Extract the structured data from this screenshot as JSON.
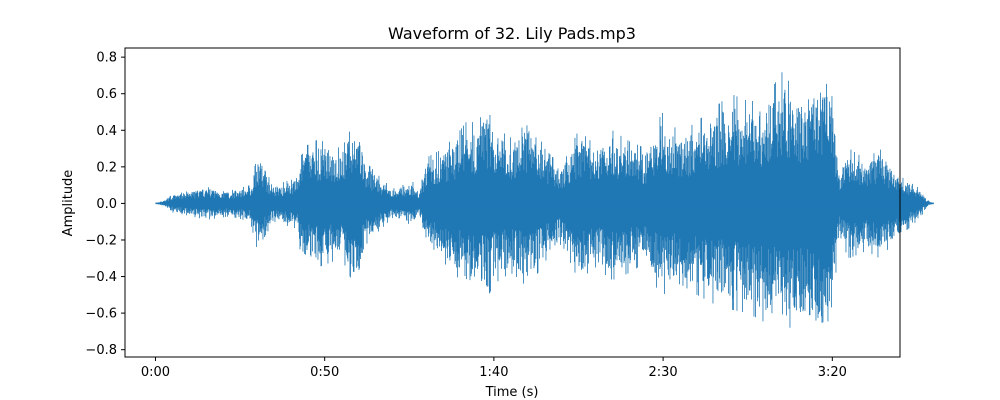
{
  "chart_data": {
    "type": "line",
    "title": "Waveform of 32. Lily Pads.mp3",
    "xlabel": "Time (s)",
    "ylabel": "Amplitude",
    "xlim": [
      -9,
      220
    ],
    "ylim": [
      -0.84,
      0.85
    ],
    "xticks": [
      0,
      50,
      100,
      150,
      200
    ],
    "xtick_labels": [
      "0:00",
      "0:50",
      "1:40",
      "2:30",
      "3:20"
    ],
    "yticks": [
      -0.8,
      -0.6,
      -0.4,
      -0.2,
      0.0,
      0.2,
      0.4,
      0.6,
      0.8
    ],
    "ytick_labels": [
      "−0.8",
      "−0.6",
      "−0.4",
      "−0.2",
      "0.0",
      "0.2",
      "0.4",
      "0.6",
      "0.8"
    ],
    "color": "#1f77b4",
    "grid": false,
    "series": [
      {
        "envelope_time_s": [
          0,
          3,
          5,
          8,
          15,
          22,
          28,
          30,
          35,
          42,
          43,
          48,
          55,
          58,
          60,
          62,
          65,
          70,
          76,
          78,
          80,
          85,
          90,
          92,
          95,
          98,
          100,
          105,
          108,
          110,
          115,
          120,
          125,
          130,
          135,
          140,
          145,
          148,
          150,
          155,
          160,
          165,
          170,
          175,
          180,
          185,
          190,
          195,
          198,
          199,
          202,
          205,
          210,
          214,
          220,
          226,
          228,
          230
        ],
        "envelope_upper": [
          0.0,
          0.02,
          0.05,
          0.06,
          0.09,
          0.07,
          0.1,
          0.25,
          0.1,
          0.14,
          0.3,
          0.35,
          0.3,
          0.42,
          0.44,
          0.23,
          0.17,
          0.08,
          0.12,
          0.06,
          0.25,
          0.3,
          0.4,
          0.45,
          0.44,
          0.53,
          0.42,
          0.36,
          0.4,
          0.5,
          0.3,
          0.2,
          0.4,
          0.32,
          0.4,
          0.34,
          0.3,
          0.44,
          0.5,
          0.38,
          0.45,
          0.52,
          0.6,
          0.56,
          0.56,
          0.72,
          0.6,
          0.66,
          0.72,
          0.76,
          0.18,
          0.3,
          0.24,
          0.3,
          0.15,
          0.08,
          0.02,
          0.0
        ],
        "envelope_lower": [
          0.0,
          -0.02,
          -0.05,
          -0.06,
          -0.09,
          -0.07,
          -0.1,
          -0.25,
          -0.1,
          -0.14,
          -0.3,
          -0.35,
          -0.3,
          -0.42,
          -0.44,
          -0.23,
          -0.17,
          -0.08,
          -0.12,
          -0.06,
          -0.25,
          -0.32,
          -0.42,
          -0.48,
          -0.46,
          -0.52,
          -0.44,
          -0.38,
          -0.42,
          -0.47,
          -0.32,
          -0.22,
          -0.42,
          -0.35,
          -0.42,
          -0.38,
          -0.32,
          -0.46,
          -0.5,
          -0.44,
          -0.5,
          -0.55,
          -0.58,
          -0.6,
          -0.65,
          -0.7,
          -0.66,
          -0.72,
          -0.75,
          -0.78,
          -0.2,
          -0.3,
          -0.26,
          -0.3,
          -0.18,
          -0.08,
          -0.02,
          0.0
        ]
      }
    ]
  }
}
